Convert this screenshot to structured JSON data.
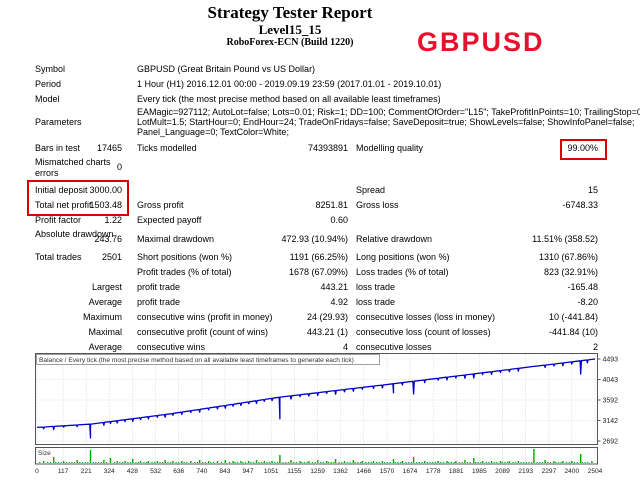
{
  "header": {
    "report_title": "Strategy Tester Report",
    "ea_name": "Level15_15",
    "server": "RoboForex-ECN (Build 1220)",
    "symbol_badge": "GBPUSD",
    "accent_red": "#e8112d"
  },
  "report": {
    "sections": [
      {
        "rows": [
          {
            "l1": "Symbol",
            "l2": "GBPUSD (Great Britain Pound vs US Dollar)"
          },
          {
            "l1": "Period",
            "l2": "1 Hour (H1) 2016.12.01 00:00 - 2019.09.19 23:59 (2017.01.01 - 2019.10.01)"
          },
          {
            "l1": "Model",
            "l2": "Every tick (the most precise method based on all available least timeframes)"
          },
          {
            "l1": "Parameters",
            "type": "params",
            "param_lines": [
              "EAMagic=927112; AutoLot=false; Lots=0.01; Risk=1; DD=100; CommentOfOrder=\"L15\"; TakeProfitInPoints=10; TrailingStop=0;",
              "LotMult=1.5; StartHour=0; EndHour=24; TradeOnFridays=false; SaveDeposit=true; ShowLevels=false; ShowInfoPanel=false;",
              "Panel_Language=0; TextColor=White;"
            ]
          }
        ]
      },
      {
        "rows": [
          {
            "l1": "Bars in test",
            "v1": "17465",
            "l2": "Ticks modelled",
            "v2": "74393891",
            "l3": "Modelling quality",
            "v3": "99.00%"
          },
          {
            "l1": "Mismatched charts errors",
            "v1": "0",
            "type": "tall"
          }
        ]
      },
      {
        "rows": [
          {
            "l1": "Initial deposit",
            "v1": "3000.00",
            "l3": "Spread",
            "v3": "15"
          },
          {
            "l1": "Total net profit",
            "v1": "1503.48",
            "l2": "Gross profit",
            "v2": "8251.81",
            "l3": "Gross loss",
            "v3": "-6748.33"
          },
          {
            "l1": "Profit factor",
            "v1": "1.22",
            "l2": "Expected payoff",
            "v2": "0.60"
          },
          {
            "l1": "Absolute drawdown",
            "v1": "243.76",
            "l2": "Maximal drawdown",
            "v2": "472.93 (10.94%)",
            "l3": "Relative drawdown",
            "v3": "11.51% (358.52)",
            "type": "tall"
          }
        ]
      },
      {
        "rows": [
          {
            "l1": "Total trades",
            "v1": "2501",
            "l2": "Short positions (won %)",
            "v2": "1191 (66.25%)",
            "l3": "Long positions (won %)",
            "v3": "1310 (67.86%)"
          },
          {
            "l2": "Profit trades (% of total)",
            "v2": "1678 (67.09%)",
            "l3": "Loss trades (% of total)",
            "v3": "823 (32.91%)"
          },
          {
            "v1": "Largest",
            "l2": "profit trade",
            "v2": "443.21",
            "l3": "loss trade",
            "v3": "-165.48"
          },
          {
            "v1": "Average",
            "l2": "profit trade",
            "v2": "4.92",
            "l3": "loss trade",
            "v3": "-8.20"
          },
          {
            "v1": "Maximum",
            "l2": "consecutive wins (profit in money)",
            "v2": "24 (29.93)",
            "l3": "consecutive losses (loss in money)",
            "v3": "10 (-441.84)"
          },
          {
            "v1": "Maximal",
            "l2": "consecutive profit (count of wins)",
            "v2": "443.21 (1)",
            "l3": "consecutive loss (count of losses)",
            "v3": "-441.84 (10)"
          },
          {
            "v1": "Average",
            "l2": "consecutive wins",
            "v2": "4",
            "l3": "consecutive losses",
            "v3": "2"
          }
        ]
      }
    ]
  },
  "chart_data": {
    "type": "line",
    "title": "Balance / Every tick (the most precise method based on all available least timeframes to generate each tick)",
    "line_color": "#0000c8",
    "grid_color": "#bdbdbd",
    "x_ticks": [
      0,
      117,
      221,
      324,
      428,
      532,
      636,
      740,
      843,
      947,
      1051,
      1155,
      1259,
      1362,
      1466,
      1570,
      1674,
      1778,
      1881,
      1985,
      2089,
      2193,
      2297,
      2400,
      2504
    ],
    "y_ticks": [
      4493,
      4043,
      3592,
      3142,
      2692
    ],
    "x_range": [
      0,
      2504
    ],
    "y_range": [
      2692,
      4493
    ],
    "balance_baseline": [
      [
        0,
        2990
      ],
      [
        240,
        3062
      ],
      [
        600,
        3290
      ],
      [
        1090,
        3655
      ],
      [
        1600,
        3950
      ],
      [
        2000,
        4190
      ],
      [
        2230,
        4330
      ],
      [
        2300,
        4370
      ],
      [
        2504,
        4493
      ]
    ],
    "drawdown_spikes": [
      [
        30,
        40
      ],
      [
        75,
        70
      ],
      [
        120,
        30
      ],
      [
        180,
        35
      ],
      [
        240,
        305
      ],
      [
        300,
        60
      ],
      [
        330,
        40
      ],
      [
        360,
        50
      ],
      [
        395,
        40
      ],
      [
        430,
        60
      ],
      [
        465,
        40
      ],
      [
        500,
        50
      ],
      [
        540,
        40
      ],
      [
        575,
        60
      ],
      [
        610,
        40
      ],
      [
        650,
        50
      ],
      [
        690,
        40
      ],
      [
        730,
        60
      ],
      [
        770,
        40
      ],
      [
        810,
        50
      ],
      [
        845,
        60
      ],
      [
        880,
        40
      ],
      [
        915,
        50
      ],
      [
        950,
        40
      ],
      [
        985,
        60
      ],
      [
        1020,
        40
      ],
      [
        1055,
        50
      ],
      [
        1090,
        475
      ],
      [
        1140,
        70
      ],
      [
        1180,
        40
      ],
      [
        1220,
        50
      ],
      [
        1260,
        60
      ],
      [
        1300,
        40
      ],
      [
        1340,
        80
      ],
      [
        1380,
        50
      ],
      [
        1420,
        60
      ],
      [
        1460,
        40
      ],
      [
        1510,
        50
      ],
      [
        1550,
        60
      ],
      [
        1600,
        200
      ],
      [
        1640,
        50
      ],
      [
        1690,
        280
      ],
      [
        1740,
        60
      ],
      [
        1800,
        40
      ],
      [
        1840,
        60
      ],
      [
        1880,
        40
      ],
      [
        1920,
        70
      ],
      [
        1960,
        90
      ],
      [
        2000,
        40
      ],
      [
        2040,
        60
      ],
      [
        2080,
        40
      ],
      [
        2120,
        50
      ],
      [
        2160,
        60
      ],
      [
        2280,
        50
      ],
      [
        2320,
        40
      ],
      [
        2360,
        60
      ],
      [
        2400,
        50
      ],
      [
        2440,
        290
      ],
      [
        2470,
        60
      ]
    ],
    "size_panel": {
      "label": "Size",
      "bar_color": "#00a800",
      "bars": [
        [
          30,
          2
        ],
        [
          75,
          6
        ],
        [
          120,
          2
        ],
        [
          180,
          3
        ],
        [
          240,
          13
        ],
        [
          300,
          3
        ],
        [
          330,
          5
        ],
        [
          360,
          2
        ],
        [
          395,
          2
        ],
        [
          430,
          4
        ],
        [
          465,
          2
        ],
        [
          500,
          2
        ],
        [
          540,
          2
        ],
        [
          575,
          3
        ],
        [
          610,
          2
        ],
        [
          650,
          2
        ],
        [
          690,
          2
        ],
        [
          730,
          3
        ],
        [
          770,
          2
        ],
        [
          810,
          2
        ],
        [
          845,
          3
        ],
        [
          880,
          2
        ],
        [
          915,
          2
        ],
        [
          950,
          2
        ],
        [
          985,
          3
        ],
        [
          1020,
          2
        ],
        [
          1055,
          2
        ],
        [
          1090,
          8
        ],
        [
          1140,
          3
        ],
        [
          1180,
          2
        ],
        [
          1220,
          2
        ],
        [
          1260,
          3
        ],
        [
          1300,
          2
        ],
        [
          1340,
          4
        ],
        [
          1380,
          2
        ],
        [
          1420,
          3
        ],
        [
          1460,
          2
        ],
        [
          1510,
          2
        ],
        [
          1550,
          2
        ],
        [
          1600,
          4
        ],
        [
          1640,
          2
        ],
        [
          1690,
          6
        ],
        [
          1740,
          2
        ],
        [
          1800,
          2
        ],
        [
          1840,
          2
        ],
        [
          1880,
          2
        ],
        [
          1920,
          3
        ],
        [
          1960,
          5
        ],
        [
          2000,
          2
        ],
        [
          2040,
          2
        ],
        [
          2080,
          2
        ],
        [
          2120,
          2
        ],
        [
          2160,
          2
        ],
        [
          2230,
          14
        ],
        [
          2280,
          3
        ],
        [
          2320,
          2
        ],
        [
          2360,
          2
        ],
        [
          2400,
          2
        ],
        [
          2440,
          9
        ],
        [
          2490,
          2
        ]
      ],
      "minor_tick_every": 12,
      "minor_tick_h": 1
    }
  },
  "annotations": {
    "highlight_color": "#dd0000",
    "boxes": [
      "modelling-quality",
      "initial-deposit-and-net-profit"
    ]
  }
}
